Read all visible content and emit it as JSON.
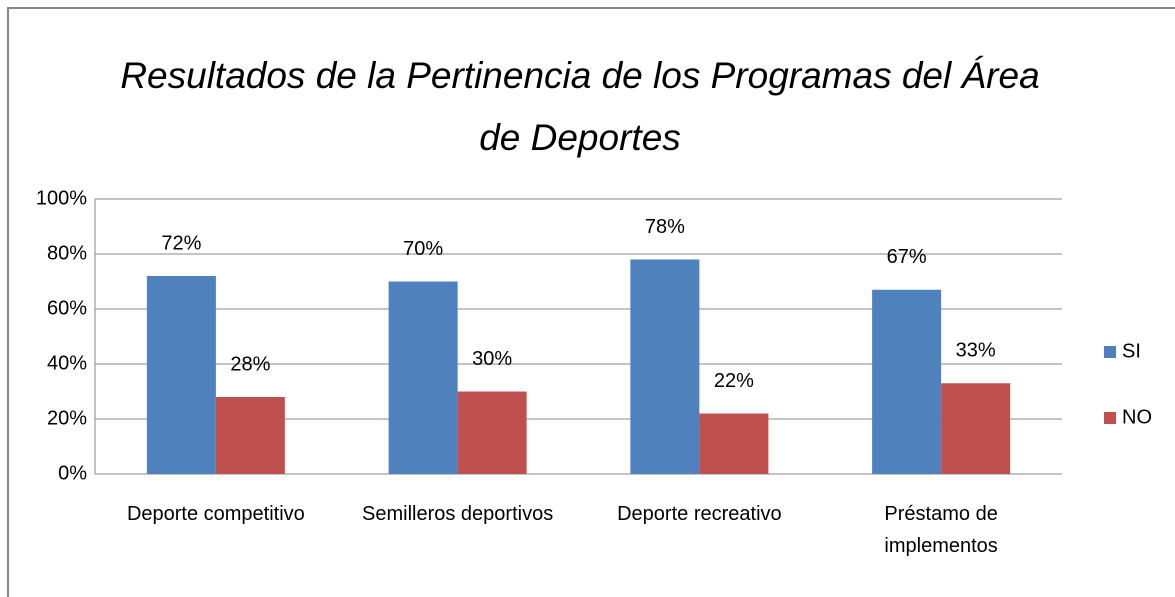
{
  "chart_data": {
    "type": "bar",
    "title": "Resultados de la Pertinencia de los Programas del Área de Deportes",
    "categories": [
      "Deporte competitivo",
      "Semilleros deportivos",
      "Deporte recreativo",
      "Préstamo de implementos"
    ],
    "series": [
      {
        "name": "SI",
        "color": "#4f81bd",
        "values": [
          72,
          70,
          78,
          67
        ],
        "value_labels": [
          "72%",
          "70%",
          "78%",
          "67%"
        ]
      },
      {
        "name": "NO",
        "color": "#c0504d",
        "values": [
          28,
          30,
          22,
          33
        ],
        "value_labels": [
          "28%",
          "30%",
          "22%",
          "33%"
        ]
      }
    ],
    "ylim": [
      0,
      100
    ],
    "yticks": [
      {
        "value": 0,
        "label": "0%"
      },
      {
        "value": 20,
        "label": "20%"
      },
      {
        "value": 40,
        "label": "40%"
      },
      {
        "value": 60,
        "label": "60%"
      },
      {
        "value": 80,
        "label": "80%"
      },
      {
        "value": 100,
        "label": "100%"
      }
    ],
    "grid": true,
    "legend": "right"
  }
}
